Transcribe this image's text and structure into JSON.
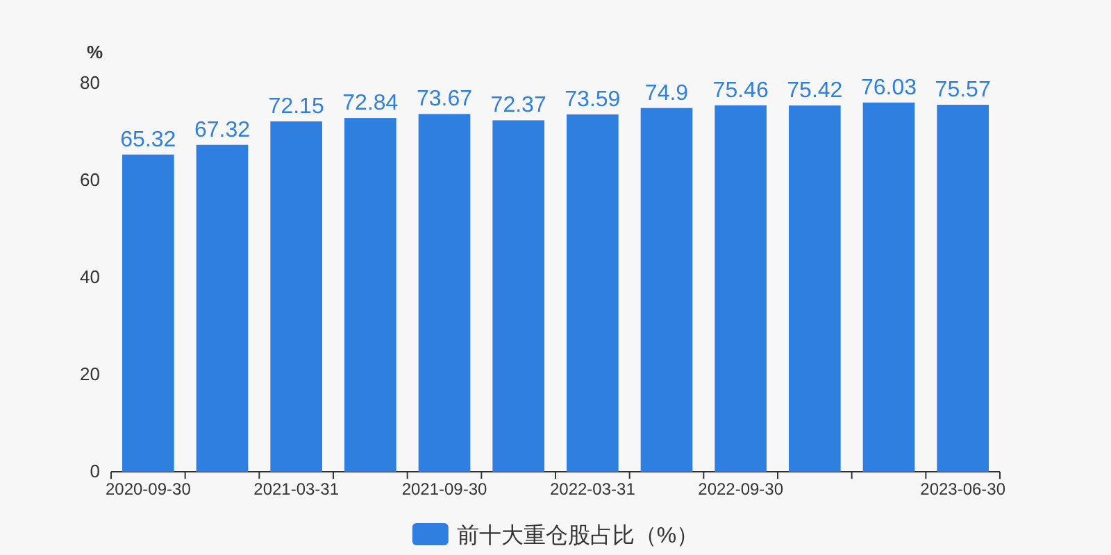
{
  "chart_data": {
    "type": "bar",
    "ylabel": "%",
    "categories": [
      "2020-09-30",
      null,
      "2021-03-31",
      null,
      "2021-09-30",
      null,
      "2022-03-31",
      null,
      "2022-09-30",
      null,
      null,
      "2023-06-30"
    ],
    "series": [
      {
        "name": "前十大重仓股占比（%）",
        "color": "#2e7fe0",
        "values": [
          65.32,
          67.32,
          72.15,
          72.84,
          73.67,
          72.37,
          73.59,
          74.9,
          75.46,
          75.42,
          76.03,
          75.57
        ]
      }
    ],
    "ylim": [
      0,
      80
    ],
    "yticks": [
      0,
      20,
      40,
      60,
      80
    ],
    "data_labels": true,
    "grid": false,
    "legend": "bottom"
  }
}
